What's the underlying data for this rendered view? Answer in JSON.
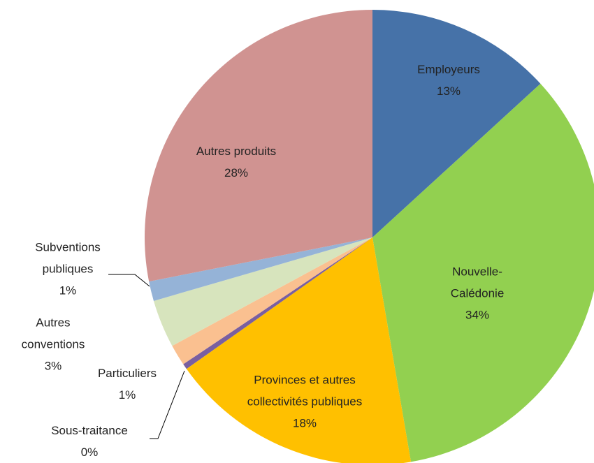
{
  "chart_data": {
    "type": "pie",
    "categories": [
      "Employeurs",
      "Nouvelle-Calédonie",
      "Provinces et autres collectivités publiques",
      "Sous-traitance",
      "Particuliers",
      "Autres conventions",
      "Subventions publiques",
      "Autres produits"
    ],
    "values": [
      13.2,
      34.1,
      17.9,
      0.4,
      1.5,
      3.4,
      1.4,
      28.1
    ],
    "value_labels": [
      "13%",
      "34%",
      "18%",
      "0%",
      "1%",
      "3%",
      "1%",
      "28%"
    ],
    "colors": [
      "#4672a8",
      "#92d050",
      "#ffc000",
      "#7a5fa0",
      "#fac090",
      "#d7e4bd",
      "#95b3d7",
      "#d09391"
    ]
  }
}
